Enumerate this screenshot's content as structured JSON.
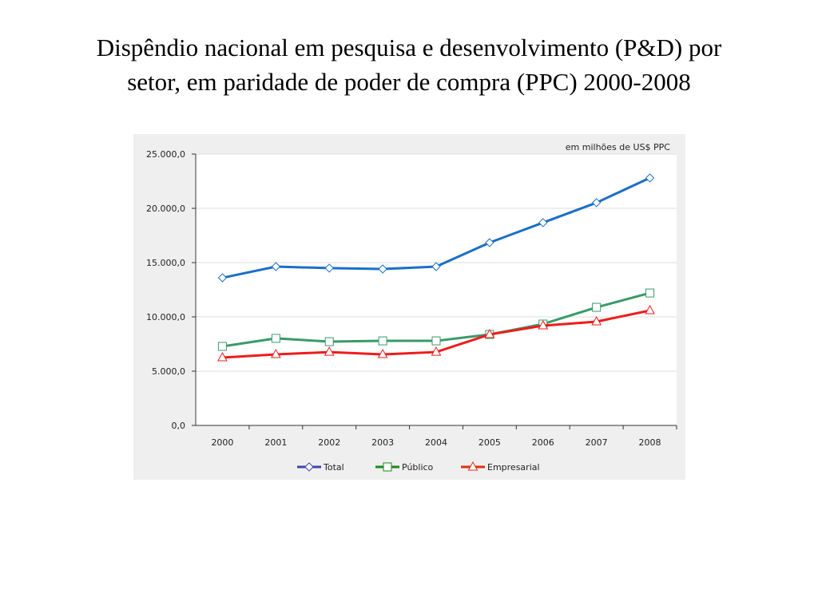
{
  "title_line1": "Dispêndio nacional em pesquisa e desenvolvimento (P&D) por",
  "title_line2": "setor, em paridade de poder de compra (PPC) 2000-2008",
  "chart_data": {
    "type": "line",
    "title": "Dispêndio nacional em pesquisa e desenvolvimento (P&D) por setor, em paridade de poder de compra (PPC) 2000-2008",
    "unit_note": "em milhões de US$ PPC",
    "categories": [
      "2000",
      "2001",
      "2002",
      "2003",
      "2004",
      "2005",
      "2006",
      "2007",
      "2008"
    ],
    "ylim": [
      0,
      25000
    ],
    "yticks": [
      "0,0",
      "5.000,0",
      "10.000,0",
      "15.000,0",
      "20.000,0",
      "25.000,0"
    ],
    "grid": true,
    "legend": "bottom",
    "series": [
      {
        "name": "Total",
        "color": "#1a6fc8",
        "legend_color": "#4444aa",
        "marker": "diamond",
        "values": [
          13600,
          14630,
          14490,
          14410,
          14630,
          16840,
          18680,
          20520,
          22800
        ]
      },
      {
        "name": "Público",
        "color": "#3a9a6a",
        "legend_color": "#1a8a1a",
        "marker": "square",
        "values": [
          7280,
          8020,
          7720,
          7790,
          7790,
          8380,
          9340,
          10880,
          12200
        ]
      },
      {
        "name": "Empresarial",
        "color": "#ee1c1c",
        "legend_color": "#dd3311",
        "marker": "triangle",
        "values": [
          6250,
          6540,
          6760,
          6540,
          6760,
          8380,
          9190,
          9560,
          10590
        ]
      }
    ]
  }
}
